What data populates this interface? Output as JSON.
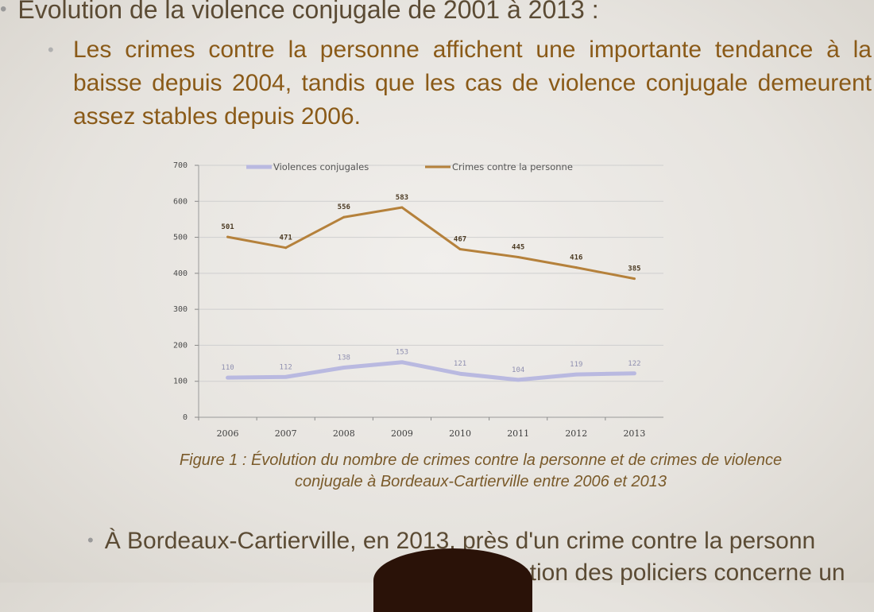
{
  "slide": {
    "bullet1": "Evolution de la violence conjugale de 2001 à 2013 :",
    "bullet2": "Les crimes contre la personne  affichent une importante tendance à la baisse depuis 2004, tandis que les cas de violence conjugale demeurent assez stables depuis 2006.",
    "caption_line1": "Figure 1 : Évolution du nombre de crimes contre la personne et de crimes de violence",
    "caption_line2": "conjugale à Bordeaux-Cartierville entre 2006 et 2013",
    "bullet3_line1": "À Bordeaux-Cartierville, en 2013, près d'un crime contre la personn",
    "bullet3_line2": "ntion des policiers concerne un"
  },
  "colors": {
    "violences": "#b9b9e0",
    "crimes": "#b5813b",
    "grid": "#cfcfcf"
  },
  "chart_data": {
    "type": "line",
    "title": "",
    "xlabel": "",
    "ylabel": "",
    "categories": [
      "2006",
      "2007",
      "2008",
      "2009",
      "2010",
      "2011",
      "2012",
      "2013"
    ],
    "ylim": [
      0,
      700
    ],
    "yticks": [
      0,
      100,
      200,
      300,
      400,
      500,
      600,
      700
    ],
    "grid": true,
    "legend_position": "top",
    "series": [
      {
        "name": "Violences conjugales",
        "values": [
          110,
          112,
          138,
          153,
          121,
          104,
          119,
          122
        ]
      },
      {
        "name": "Crimes contre la personne",
        "values": [
          501,
          471,
          556,
          583,
          467,
          445,
          416,
          385
        ]
      }
    ]
  }
}
